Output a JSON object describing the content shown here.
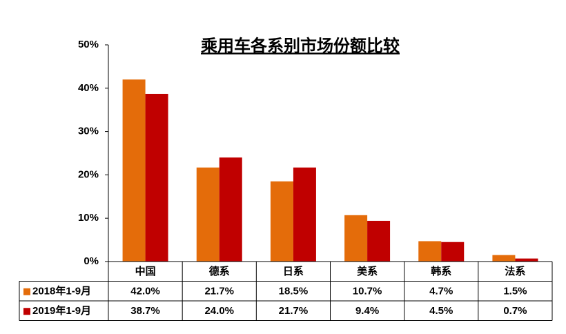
{
  "chart_data": {
    "type": "bar",
    "title": "乘用车各系别市场份额比较",
    "categories": [
      "中国",
      "德系",
      "日系",
      "美系",
      "韩系",
      "法系"
    ],
    "series": [
      {
        "name": "2018年1-9月",
        "color": "#e46c0a",
        "values": [
          42.0,
          21.7,
          18.5,
          10.7,
          4.7,
          1.5
        ],
        "value_labels": [
          "42.0%",
          "21.7%",
          "18.5%",
          "10.7%",
          "4.7%",
          "1.5%"
        ]
      },
      {
        "name": "2019年1-9月",
        "color": "#c00000",
        "values": [
          38.7,
          24.0,
          21.7,
          9.4,
          4.5,
          0.7
        ],
        "value_labels": [
          "38.7%",
          "24.0%",
          "21.7%",
          "9.4%",
          "4.5%",
          "0.7%"
        ]
      }
    ],
    "ylim": [
      0,
      50
    ],
    "yticks": [
      {
        "value": 0,
        "label": "0%"
      },
      {
        "value": 10,
        "label": "10%"
      },
      {
        "value": 20,
        "label": "20%"
      },
      {
        "value": 30,
        "label": "30%"
      },
      {
        "value": 40,
        "label": "40%"
      },
      {
        "value": 50,
        "label": "50%"
      }
    ],
    "grid": false
  }
}
